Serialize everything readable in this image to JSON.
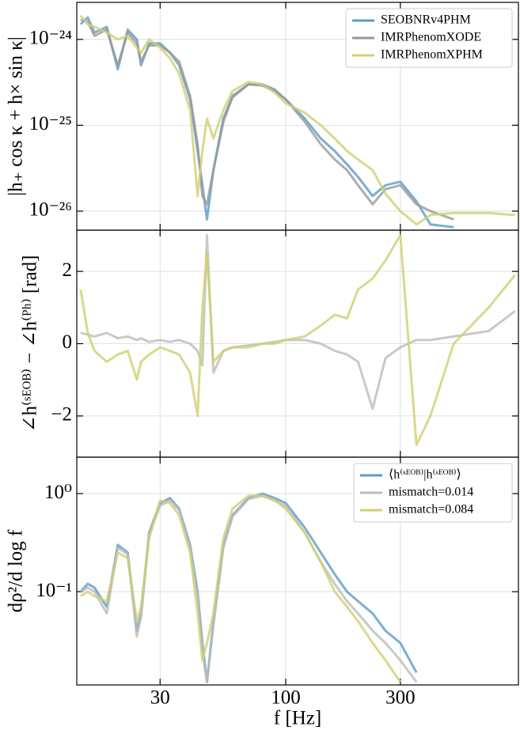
{
  "chart_data": [
    {
      "type": "line",
      "ylabel": "|h₊ cos κ + h× sin κ|",
      "log_y": true,
      "log_x": true,
      "grid": true,
      "legend": "upper right",
      "xlim": [
        13.5,
        930
      ],
      "ylim": [
        6e-27,
        2.7e-24
      ],
      "yticks": [
        {
          "value": 1e-26,
          "label": "10⁻²⁶"
        },
        {
          "value": 1e-25,
          "label": "10⁻²⁵"
        },
        {
          "value": 1e-24,
          "label": "10⁻²⁴"
        }
      ],
      "x": [
        14,
        15,
        16,
        18,
        20,
        22,
        24,
        25,
        27,
        30,
        33,
        36,
        40,
        43,
        45,
        47,
        50,
        55,
        60,
        70,
        80,
        90,
        100,
        120,
        140,
        160,
        180,
        200,
        230,
        260,
        300,
        350,
        400,
        500,
        700,
        900
      ],
      "series": [
        {
          "name": "SEOBNRv4PHM",
          "color": "#5b9bc8",
          "values": [
            1.5e-24,
            1.8e-24,
            1.2e-24,
            1.4e-24,
            4.5e-25,
            1.3e-24,
            1e-24,
            5e-25,
            9e-25,
            9e-25,
            7e-25,
            5e-25,
            2e-25,
            5e-26,
            2e-26,
            8e-27,
            3e-26,
            1.2e-25,
            2.2e-25,
            3e-25,
            3e-25,
            2.6e-25,
            2e-25,
            1.2e-25,
            7e-26,
            5e-26,
            3.5e-26,
            2.5e-26,
            1.5e-26,
            2e-26,
            2.2e-26,
            1.3e-26,
            7e-27,
            6.5e-27,
            null,
            null
          ]
        },
        {
          "name": "IMRPhenomXODE",
          "color": "#999999",
          "values": [
            1.7e-24,
            1.6e-24,
            1.1e-24,
            1.3e-24,
            5e-25,
            1.2e-24,
            9e-25,
            5.5e-25,
            8.5e-25,
            8.5e-25,
            7e-25,
            5.5e-25,
            2.2e-25,
            6e-26,
            1.5e-26,
            1.2e-26,
            3e-26,
            1.1e-25,
            2.1e-25,
            3e-25,
            2.9e-25,
            2.5e-25,
            2e-25,
            1.1e-25,
            6e-26,
            4e-26,
            3e-26,
            2e-26,
            1.2e-26,
            1.8e-26,
            2e-26,
            1.2e-26,
            1e-26,
            8e-27,
            null,
            null
          ]
        },
        {
          "name": "IMRPhenomXPHM",
          "color": "#d0d070",
          "values": [
            1.9e-24,
            1.5e-24,
            1.4e-24,
            1.2e-24,
            1e-24,
            1.1e-24,
            8e-25,
            7e-25,
            1e-24,
            8e-25,
            6e-25,
            4e-25,
            1.5e-25,
            1.5e-26,
            5e-26,
            1.2e-25,
            7e-26,
            1.5e-25,
            2.5e-25,
            3.2e-25,
            3e-25,
            2.4e-25,
            1.8e-25,
            1.4e-25,
            1e-25,
            7e-26,
            5e-26,
            4e-26,
            3e-26,
            1.6e-26,
            1e-26,
            7e-27,
            9e-27,
            9.5e-27,
            9.5e-27,
            9e-27
          ]
        }
      ]
    },
    {
      "type": "line",
      "ylabel": "∠h⁽ˢᴱᴼᴮ⁾ − ∠h⁽ᴾʰ⁾ [rad]",
      "log_x": true,
      "grid": true,
      "xlim": [
        13.5,
        930
      ],
      "ylim": [
        -3.14,
        3.14
      ],
      "yticks": [
        {
          "value": -2,
          "label": "−2"
        },
        0,
        2
      ],
      "x": [
        14,
        15,
        16,
        18,
        20,
        22,
        24,
        25,
        27,
        30,
        33,
        36,
        40,
        43,
        45,
        47,
        50,
        55,
        60,
        70,
        80,
        90,
        100,
        120,
        140,
        160,
        180,
        200,
        230,
        260,
        300,
        350,
        400,
        500,
        700,
        900
      ],
      "series": [
        {
          "name": "mismatch=0.014",
          "color": "#bbbbbb",
          "values": [
            0.3,
            0.25,
            0.2,
            0.3,
            0.15,
            0.2,
            0.1,
            0.15,
            0.05,
            0.1,
            0.05,
            0.1,
            0.0,
            -0.2,
            -0.6,
            3.0,
            -0.8,
            -0.2,
            -0.1,
            -0.05,
            0.0,
            0.05,
            0.1,
            0.1,
            0.0,
            -0.2,
            -0.3,
            -0.5,
            -1.8,
            -0.4,
            -0.1,
            0.1,
            0.1,
            0.2,
            0.35,
            0.9
          ]
        },
        {
          "name": "mismatch=0.084",
          "color": "#d0d070",
          "values": [
            1.5,
            0.3,
            -0.2,
            -0.5,
            -0.3,
            -0.2,
            -1.0,
            -0.5,
            -0.3,
            -0.1,
            -0.2,
            -0.3,
            -0.8,
            -2.0,
            1.0,
            2.5,
            -0.5,
            -0.2,
            -0.1,
            -0.1,
            0.0,
            0.0,
            0.1,
            0.2,
            0.5,
            0.8,
            0.7,
            1.5,
            1.8,
            2.3,
            3.0,
            -2.8,
            -2.0,
            0.0,
            1.0,
            1.9
          ]
        }
      ]
    },
    {
      "type": "line",
      "ylabel": "dρ²/d log f",
      "xlabel": "f [Hz]",
      "log_y": true,
      "log_x": true,
      "grid": true,
      "legend": "upper right",
      "xlim": [
        13.5,
        930
      ],
      "ylim": [
        0.0112,
        2.35
      ],
      "xticks": [
        30,
        100,
        300
      ],
      "yticks": [
        {
          "value": 0.1,
          "label": "10⁻¹"
        },
        {
          "value": 1,
          "label": "10⁰"
        }
      ],
      "x": [
        14,
        15,
        16,
        18,
        20,
        22,
        24,
        25,
        27,
        30,
        33,
        36,
        40,
        43,
        45,
        47,
        50,
        55,
        60,
        70,
        80,
        90,
        100,
        120,
        140,
        160,
        180,
        200,
        230,
        260,
        300,
        350,
        400,
        500,
        700,
        900
      ],
      "series": [
        {
          "name": "⟨h⁽ˢᴱᴼᴮ⁾|h⁽ˢᴱᴼᴮ⁾⟩",
          "color": "#5b9bc8",
          "values": [
            0.1,
            0.12,
            0.11,
            0.07,
            0.3,
            0.25,
            0.04,
            0.06,
            0.4,
            0.8,
            0.9,
            0.7,
            0.3,
            0.1,
            0.03,
            0.012,
            0.05,
            0.3,
            0.6,
            0.9,
            1.0,
            0.9,
            0.8,
            0.45,
            0.25,
            0.15,
            0.1,
            0.08,
            0.06,
            0.04,
            0.03,
            0.015,
            null,
            null,
            null,
            null
          ]
        },
        {
          "name": "mismatch=0.014",
          "color": "#bbbbbb",
          "values": [
            0.1,
            0.11,
            0.1,
            0.06,
            0.28,
            0.24,
            0.035,
            0.055,
            0.38,
            0.75,
            0.85,
            0.68,
            0.28,
            0.09,
            0.025,
            0.012,
            0.045,
            0.28,
            0.58,
            0.88,
            0.95,
            0.85,
            0.75,
            0.4,
            0.2,
            0.12,
            0.08,
            0.06,
            0.04,
            0.03,
            0.02,
            0.012,
            null,
            null,
            null,
            null
          ]
        },
        {
          "name": "mismatch=0.084",
          "color": "#d0d070",
          "values": [
            0.09,
            0.1,
            0.09,
            0.08,
            0.25,
            0.22,
            0.05,
            0.07,
            0.35,
            0.85,
            0.8,
            0.6,
            0.25,
            0.06,
            0.02,
            0.03,
            0.06,
            0.35,
            0.7,
            0.95,
            0.95,
            0.85,
            0.7,
            0.4,
            0.2,
            0.1,
            0.07,
            0.05,
            0.03,
            0.02,
            0.012,
            null,
            null,
            null,
            null,
            null
          ]
        }
      ]
    }
  ]
}
